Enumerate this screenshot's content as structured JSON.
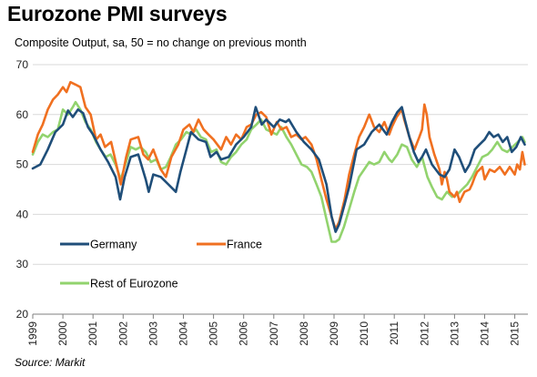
{
  "title": "Eurozone PMI surveys",
  "subtitle": "Composite Output,  sa, 50 = no change on previous month",
  "source": "Source: Markit",
  "chart_data": {
    "type": "line",
    "title": "Eurozone PMI surveys",
    "subtitle": "Composite Output,  sa, 50 = no change on previous month",
    "xlabel": "",
    "ylabel": "",
    "ylim": [
      20,
      70
    ],
    "xlim": [
      1999.0,
      2015.5
    ],
    "yticks": [
      20,
      30,
      40,
      50,
      60,
      70
    ],
    "xticks": [
      "1999",
      "2000",
      "2001",
      "2002",
      "2003",
      "2004",
      "2005",
      "2006",
      "2007",
      "2008",
      "2009",
      "2010",
      "2011",
      "2012",
      "2013",
      "2014",
      "2015"
    ],
    "grid": "horizontal",
    "legend_position": "bottom-left",
    "series": [
      {
        "name": "Germany",
        "color": "#1f4e79",
        "points": [
          [
            1999.0,
            49.2
          ],
          [
            1999.25,
            50.0
          ],
          [
            1999.5,
            53.0
          ],
          [
            1999.75,
            56.5
          ],
          [
            2000.0,
            58.0
          ],
          [
            2000.17,
            60.8
          ],
          [
            2000.33,
            59.5
          ],
          [
            2000.5,
            61.0
          ],
          [
            2000.67,
            60.3
          ],
          [
            2000.83,
            57.5
          ],
          [
            2001.0,
            56.0
          ],
          [
            2001.25,
            53.0
          ],
          [
            2001.5,
            50.5
          ],
          [
            2001.75,
            47.5
          ],
          [
            2001.9,
            43.0
          ],
          [
            2002.05,
            47.5
          ],
          [
            2002.25,
            51.5
          ],
          [
            2002.5,
            52.0
          ],
          [
            2002.75,
            47.0
          ],
          [
            2002.85,
            44.5
          ],
          [
            2003.0,
            48.0
          ],
          [
            2003.25,
            47.5
          ],
          [
            2003.5,
            46.0
          ],
          [
            2003.75,
            44.5
          ],
          [
            2003.9,
            48.5
          ],
          [
            2004.1,
            53.0
          ],
          [
            2004.25,
            56.5
          ],
          [
            2004.5,
            55.0
          ],
          [
            2004.75,
            54.5
          ],
          [
            2004.9,
            51.5
          ],
          [
            2005.1,
            52.5
          ],
          [
            2005.25,
            51.0
          ],
          [
            2005.5,
            51.5
          ],
          [
            2005.75,
            54.0
          ],
          [
            2006.0,
            55.5
          ],
          [
            2006.25,
            57.5
          ],
          [
            2006.4,
            61.5
          ],
          [
            2006.6,
            58.0
          ],
          [
            2006.75,
            59.0
          ],
          [
            2007.0,
            57.5
          ],
          [
            2007.2,
            59.0
          ],
          [
            2007.4,
            58.5
          ],
          [
            2007.5,
            59.0
          ],
          [
            2007.75,
            56.5
          ],
          [
            2008.0,
            54.5
          ],
          [
            2008.25,
            53.0
          ],
          [
            2008.5,
            51.0
          ],
          [
            2008.75,
            46.0
          ],
          [
            2008.92,
            39.5
          ],
          [
            2009.05,
            36.5
          ],
          [
            2009.17,
            38.0
          ],
          [
            2009.35,
            42.0
          ],
          [
            2009.5,
            45.5
          ],
          [
            2009.75,
            53.0
          ],
          [
            2010.0,
            54.0
          ],
          [
            2010.25,
            56.5
          ],
          [
            2010.5,
            58.0
          ],
          [
            2010.75,
            56.0
          ],
          [
            2010.92,
            58.5
          ],
          [
            2011.1,
            60.5
          ],
          [
            2011.25,
            61.5
          ],
          [
            2011.35,
            59.0
          ],
          [
            2011.5,
            55.5
          ],
          [
            2011.65,
            52.5
          ],
          [
            2011.8,
            50.5
          ],
          [
            2011.92,
            51.5
          ],
          [
            2012.05,
            53.0
          ],
          [
            2012.25,
            50.0
          ],
          [
            2012.5,
            48.0
          ],
          [
            2012.67,
            47.5
          ],
          [
            2012.83,
            49.0
          ],
          [
            2013.0,
            53.0
          ],
          [
            2013.15,
            51.5
          ],
          [
            2013.35,
            48.5
          ],
          [
            2013.5,
            50.0
          ],
          [
            2013.67,
            53.0
          ],
          [
            2013.83,
            54.0
          ],
          [
            2014.0,
            55.0
          ],
          [
            2014.15,
            56.5
          ],
          [
            2014.3,
            55.5
          ],
          [
            2014.45,
            56.0
          ],
          [
            2014.6,
            54.5
          ],
          [
            2014.75,
            55.5
          ],
          [
            2014.9,
            52.5
          ],
          [
            2015.05,
            53.5
          ],
          [
            2015.2,
            55.5
          ],
          [
            2015.33,
            54.0
          ]
        ]
      },
      {
        "name": "France",
        "color": "#f07020",
        "points": [
          [
            1999.0,
            52.5
          ],
          [
            1999.17,
            56.0
          ],
          [
            1999.33,
            58.0
          ],
          [
            1999.5,
            61.0
          ],
          [
            1999.67,
            63.0
          ],
          [
            1999.83,
            64.0
          ],
          [
            2000.0,
            65.5
          ],
          [
            2000.12,
            64.5
          ],
          [
            2000.25,
            66.5
          ],
          [
            2000.42,
            66.0
          ],
          [
            2000.58,
            65.5
          ],
          [
            2000.75,
            61.5
          ],
          [
            2000.92,
            60.0
          ],
          [
            2001.1,
            55.0
          ],
          [
            2001.25,
            56.0
          ],
          [
            2001.4,
            53.5
          ],
          [
            2001.6,
            54.5
          ],
          [
            2001.83,
            48.5
          ],
          [
            2001.92,
            46.0
          ],
          [
            2002.1,
            51.5
          ],
          [
            2002.25,
            55.0
          ],
          [
            2002.5,
            55.5
          ],
          [
            2002.67,
            52.0
          ],
          [
            2002.83,
            51.0
          ],
          [
            2003.0,
            53.0
          ],
          [
            2003.25,
            49.0
          ],
          [
            2003.42,
            47.5
          ],
          [
            2003.6,
            51.5
          ],
          [
            2003.83,
            54.0
          ],
          [
            2004.0,
            57.0
          ],
          [
            2004.2,
            58.0
          ],
          [
            2004.33,
            56.5
          ],
          [
            2004.5,
            59.0
          ],
          [
            2004.67,
            57.0
          ],
          [
            2004.83,
            56.0
          ],
          [
            2005.0,
            55.0
          ],
          [
            2005.25,
            53.0
          ],
          [
            2005.42,
            55.5
          ],
          [
            2005.58,
            54.0
          ],
          [
            2005.75,
            56.0
          ],
          [
            2005.92,
            55.0
          ],
          [
            2006.1,
            57.5
          ],
          [
            2006.25,
            58.0
          ],
          [
            2006.42,
            60.0
          ],
          [
            2006.58,
            60.5
          ],
          [
            2006.75,
            59.5
          ],
          [
            2006.92,
            56.0
          ],
          [
            2007.1,
            58.5
          ],
          [
            2007.25,
            57.0
          ],
          [
            2007.42,
            57.5
          ],
          [
            2007.58,
            55.5
          ],
          [
            2007.75,
            56.0
          ],
          [
            2007.92,
            55.0
          ],
          [
            2008.05,
            55.5
          ],
          [
            2008.25,
            54.0
          ],
          [
            2008.42,
            51.0
          ],
          [
            2008.58,
            47.0
          ],
          [
            2008.75,
            43.0
          ],
          [
            2008.92,
            39.5
          ],
          [
            2009.05,
            37.0
          ],
          [
            2009.17,
            38.5
          ],
          [
            2009.35,
            43.0
          ],
          [
            2009.5,
            48.0
          ],
          [
            2009.67,
            52.0
          ],
          [
            2009.83,
            55.5
          ],
          [
            2010.0,
            57.5
          ],
          [
            2010.1,
            59.0
          ],
          [
            2010.17,
            60.0
          ],
          [
            2010.33,
            57.5
          ],
          [
            2010.5,
            56.5
          ],
          [
            2010.67,
            58.5
          ],
          [
            2010.83,
            56.0
          ],
          [
            2010.92,
            57.5
          ],
          [
            2011.08,
            59.5
          ],
          [
            2011.25,
            61.0
          ],
          [
            2011.33,
            59.0
          ],
          [
            2011.5,
            55.5
          ],
          [
            2011.67,
            53.0
          ],
          [
            2011.83,
            55.5
          ],
          [
            2011.92,
            57.0
          ],
          [
            2012.0,
            62.0
          ],
          [
            2012.08,
            60.0
          ],
          [
            2012.17,
            55.5
          ],
          [
            2012.33,
            52.0
          ],
          [
            2012.5,
            49.0
          ],
          [
            2012.58,
            46.0
          ],
          [
            2012.67,
            48.5
          ],
          [
            2012.75,
            47.0
          ],
          [
            2012.83,
            44.5
          ],
          [
            2013.0,
            43.5
          ],
          [
            2013.08,
            44.5
          ],
          [
            2013.17,
            42.5
          ],
          [
            2013.33,
            44.5
          ],
          [
            2013.5,
            45.0
          ],
          [
            2013.58,
            46.0
          ],
          [
            2013.67,
            47.5
          ],
          [
            2013.75,
            48.5
          ],
          [
            2013.92,
            49.5
          ],
          [
            2014.0,
            47.0
          ],
          [
            2014.17,
            49.0
          ],
          [
            2014.33,
            48.5
          ],
          [
            2014.5,
            49.5
          ],
          [
            2014.67,
            48.0
          ],
          [
            2014.83,
            49.5
          ],
          [
            2015.0,
            48.0
          ],
          [
            2015.08,
            50.0
          ],
          [
            2015.17,
            49.0
          ],
          [
            2015.25,
            52.5
          ],
          [
            2015.33,
            50.0
          ]
        ]
      },
      {
        "name": "Rest of Eurozone",
        "color": "#92d36e",
        "points": [
          [
            1999.0,
            52.0
          ],
          [
            1999.17,
            54.5
          ],
          [
            1999.33,
            56.0
          ],
          [
            1999.5,
            55.5
          ],
          [
            1999.67,
            56.5
          ],
          [
            1999.83,
            57.0
          ],
          [
            2000.0,
            61.0
          ],
          [
            2000.17,
            60.0
          ],
          [
            2000.33,
            61.5
          ],
          [
            2000.42,
            62.5
          ],
          [
            2000.58,
            61.0
          ],
          [
            2000.75,
            58.5
          ],
          [
            2000.92,
            57.0
          ],
          [
            2001.1,
            54.5
          ],
          [
            2001.25,
            53.0
          ],
          [
            2001.42,
            51.5
          ],
          [
            2001.58,
            52.0
          ],
          [
            2001.75,
            50.0
          ],
          [
            2001.92,
            47.0
          ],
          [
            2002.1,
            50.5
          ],
          [
            2002.25,
            53.5
          ],
          [
            2002.42,
            53.0
          ],
          [
            2002.58,
            53.5
          ],
          [
            2002.75,
            52.5
          ],
          [
            2002.92,
            50.5
          ],
          [
            2003.1,
            51.0
          ],
          [
            2003.25,
            49.0
          ],
          [
            2003.42,
            49.5
          ],
          [
            2003.58,
            51.5
          ],
          [
            2003.75,
            54.0
          ],
          [
            2003.92,
            55.0
          ],
          [
            2004.1,
            56.5
          ],
          [
            2004.25,
            56.0
          ],
          [
            2004.42,
            57.0
          ],
          [
            2004.58,
            55.5
          ],
          [
            2004.75,
            55.0
          ],
          [
            2004.92,
            52.5
          ],
          [
            2005.1,
            53.0
          ],
          [
            2005.25,
            50.5
          ],
          [
            2005.42,
            50.0
          ],
          [
            2005.58,
            51.5
          ],
          [
            2005.75,
            52.5
          ],
          [
            2005.92,
            54.0
          ],
          [
            2006.1,
            55.0
          ],
          [
            2006.25,
            57.0
          ],
          [
            2006.42,
            58.0
          ],
          [
            2006.58,
            59.0
          ],
          [
            2006.75,
            57.0
          ],
          [
            2006.92,
            56.5
          ],
          [
            2007.1,
            56.0
          ],
          [
            2007.25,
            57.5
          ],
          [
            2007.42,
            55.5
          ],
          [
            2007.58,
            54.0
          ],
          [
            2007.75,
            52.0
          ],
          [
            2007.92,
            50.0
          ],
          [
            2008.1,
            49.5
          ],
          [
            2008.25,
            48.5
          ],
          [
            2008.42,
            46.0
          ],
          [
            2008.58,
            43.5
          ],
          [
            2008.75,
            39.0
          ],
          [
            2008.92,
            34.5
          ],
          [
            2009.05,
            34.5
          ],
          [
            2009.17,
            35.0
          ],
          [
            2009.33,
            37.5
          ],
          [
            2009.5,
            41.0
          ],
          [
            2009.67,
            44.5
          ],
          [
            2009.83,
            47.5
          ],
          [
            2010.0,
            49.0
          ],
          [
            2010.17,
            50.5
          ],
          [
            2010.33,
            50.0
          ],
          [
            2010.5,
            50.5
          ],
          [
            2010.67,
            52.5
          ],
          [
            2010.83,
            51.0
          ],
          [
            2010.92,
            50.5
          ],
          [
            2011.1,
            52.0
          ],
          [
            2011.25,
            54.0
          ],
          [
            2011.42,
            53.5
          ],
          [
            2011.58,
            51.0
          ],
          [
            2011.75,
            49.5
          ],
          [
            2011.92,
            51.5
          ],
          [
            2012.1,
            47.5
          ],
          [
            2012.25,
            45.5
          ],
          [
            2012.42,
            43.5
          ],
          [
            2012.58,
            43.0
          ],
          [
            2012.75,
            44.5
          ],
          [
            2012.92,
            43.5
          ],
          [
            2013.1,
            44.0
          ],
          [
            2013.25,
            45.0
          ],
          [
            2013.42,
            46.0
          ],
          [
            2013.58,
            47.5
          ],
          [
            2013.75,
            49.5
          ],
          [
            2013.92,
            51.5
          ],
          [
            2014.1,
            52.0
          ],
          [
            2014.25,
            53.0
          ],
          [
            2014.42,
            54.5
          ],
          [
            2014.58,
            53.0
          ],
          [
            2014.75,
            52.5
          ],
          [
            2014.92,
            53.5
          ],
          [
            2015.1,
            54.5
          ],
          [
            2015.25,
            55.5
          ],
          [
            2015.33,
            54.5
          ]
        ]
      }
    ]
  }
}
